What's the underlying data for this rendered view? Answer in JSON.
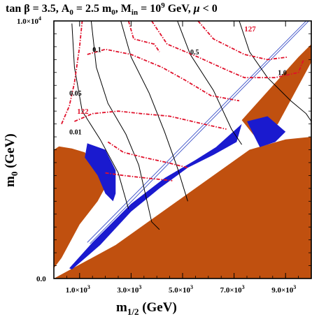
{
  "chart_data": {
    "type": "contour",
    "title": "tan β = 3.5, A0 = 2.5 m0, Min = 10^9 GeV, μ < 0",
    "title_parts": {
      "tan": "tan ",
      "beta": "β",
      "eq1": " = 3.5, A",
      "sub0": "0",
      "eq2": " = 2.5 m",
      "sub0b": "0",
      "eq3": ", M",
      "subin": "in",
      "eq4": " = 10",
      "sup9": "9",
      "eq5": " GeV, ",
      "mu": "μ",
      "eq6": " < 0"
    },
    "xlabel": "m1/2 (GeV)",
    "xlabel_parts": {
      "main": "m",
      "sub": "1/2",
      "rest": " (GeV)"
    },
    "ylabel": "m0 (GeV)",
    "ylabel_parts": {
      "main": "m",
      "sub": "0",
      "rest": " (GeV)"
    },
    "xlim": [
      0,
      10000
    ],
    "ylim": [
      0,
      10000
    ],
    "x_ticks": [
      {
        "value": 1000,
        "label": "1.0×10",
        "exp": "3"
      },
      {
        "value": 3000,
        "label": "3.0×10",
        "exp": "3"
      },
      {
        "value": 5000,
        "label": "5.0×10",
        "exp": "3"
      },
      {
        "value": 7000,
        "label": "7.0×10",
        "exp": "3"
      },
      {
        "value": 9000,
        "label": "9.0×10",
        "exp": "3"
      }
    ],
    "y_ticks": [
      {
        "value": 0,
        "label": "0.0",
        "exp": ""
      },
      {
        "value": 10000,
        "label": "1.0×10",
        "exp": "4"
      }
    ],
    "colors": {
      "excluded": "#c0500f",
      "dark_matter": "#1a1acf",
      "higgs_contour": "#e0102a",
      "black_contour": "#000000",
      "blue_line": "#3a4fc8"
    },
    "regions": {
      "excluded_lower": [
        [
          8800,
          0
        ],
        [
          10000,
          0
        ],
        [
          10000,
          5500
        ],
        [
          9000,
          5400
        ],
        [
          7600,
          5000
        ],
        [
          2400,
          1300
        ],
        [
          0,
          0
        ]
      ],
      "excluded_left": [
        [
          0,
          5000
        ],
        [
          200,
          5130
        ],
        [
          700,
          5050
        ],
        [
          1200,
          4900
        ],
        [
          1800,
          4050
        ],
        [
          2000,
          3550
        ],
        [
          1700,
          3000
        ],
        [
          1000,
          2100
        ],
        [
          300,
          800
        ],
        [
          0,
          400
        ]
      ],
      "excluded_upper_band": [
        [
          7300,
          6150
        ],
        [
          9500,
          8600
        ],
        [
          10000,
          9100
        ],
        [
          10000,
          8400
        ],
        [
          8700,
          6000
        ],
        [
          7900,
          5400
        ]
      ],
      "dm_band_main": [
        [
          600,
          400
        ],
        [
          1500,
          1400
        ],
        [
          3000,
          2900
        ],
        [
          4300,
          3900
        ],
        [
          5500,
          4600
        ],
        [
          6300,
          5100
        ],
        [
          7300,
          6000
        ],
        [
          7100,
          5300
        ],
        [
          6200,
          4800
        ],
        [
          5200,
          4300
        ],
        [
          4100,
          3500
        ],
        [
          3000,
          2600
        ],
        [
          1800,
          1300
        ],
        [
          700,
          350
        ]
      ],
      "dm_band_left": [
        [
          1300,
          5250
        ],
        [
          2000,
          5000
        ],
        [
          2400,
          4200
        ],
        [
          2400,
          3300
        ],
        [
          2300,
          3000
        ],
        [
          2000,
          3300
        ],
        [
          1700,
          4000
        ],
        [
          1200,
          4700
        ]
      ],
      "dm_band_right": [
        [
          7500,
          6100
        ],
        [
          8300,
          6300
        ],
        [
          9000,
          5700
        ],
        [
          8600,
          5300
        ],
        [
          8000,
          5100
        ]
      ]
    },
    "blue_lines": [
      {
        "points": [
          [
            1300,
            1400
          ],
          [
            10000,
            10200
          ]
        ]
      },
      {
        "points": [
          [
            1400,
            1350
          ],
          [
            10000,
            10100
          ]
        ]
      }
    ],
    "black_contours": [
      {
        "label": "0.01",
        "points": [
          [
            700,
            9900
          ],
          [
            800,
            8200
          ],
          [
            1100,
            6500
          ],
          [
            1800,
            5400
          ],
          [
            2500,
            4100
          ],
          [
            2900,
            2700
          ]
        ]
      },
      {
        "label": "0.05",
        "points": [
          [
            1450,
            10000
          ],
          [
            1650,
            8200
          ],
          [
            2100,
            6800
          ],
          [
            2800,
            5600
          ],
          [
            3300,
            4400
          ],
          [
            3800,
            2200
          ],
          [
            4100,
            1900
          ]
        ]
      },
      {
        "label": "0.1",
        "points": [
          [
            2600,
            10000
          ],
          [
            3000,
            8600
          ],
          [
            3700,
            7200
          ],
          [
            4300,
            5700
          ],
          [
            4800,
            4300
          ],
          [
            5200,
            3000
          ]
        ]
      },
      {
        "label": "0.5",
        "points": [
          [
            4800,
            10000
          ],
          [
            5300,
            8700
          ],
          [
            6200,
            7300
          ],
          [
            6900,
            5800
          ],
          [
            7300,
            5200
          ]
        ]
      },
      {
        "label": "1.0",
        "points": [
          [
            7200,
            10000
          ],
          [
            7600,
            8800
          ],
          [
            8300,
            7800
          ],
          [
            9200,
            6900
          ],
          [
            9800,
            6400
          ],
          [
            10000,
            6100
          ]
        ]
      }
    ],
    "higgs_contours": [
      {
        "label": "127",
        "points": [
          [
            3800,
            10000
          ],
          [
            4400,
            9100
          ],
          [
            5600,
            8600
          ],
          [
            6700,
            8100
          ],
          [
            7400,
            7800
          ],
          [
            8600,
            7800
          ],
          [
            9500,
            8000
          ],
          [
            9700,
            8500
          ]
        ]
      },
      {
        "label": "",
        "points": [
          [
            5600,
            10000
          ],
          [
            6200,
            9300
          ],
          [
            7400,
            8700
          ],
          [
            8300,
            8500
          ],
          [
            9100,
            8600
          ]
        ]
      },
      {
        "label": "122",
        "points": [
          [
            800,
            6100
          ],
          [
            1500,
            6400
          ],
          [
            2500,
            6500
          ],
          [
            3400,
            6400
          ],
          [
            4500,
            6300
          ],
          [
            5800,
            6000
          ],
          [
            6700,
            5800
          ]
        ]
      },
      {
        "label": "",
        "points": [
          [
            1300,
            8700
          ],
          [
            2000,
            8900
          ],
          [
            3000,
            8700
          ],
          [
            4200,
            8200
          ],
          [
            5100,
            7700
          ],
          [
            6100,
            7100
          ],
          [
            7200,
            6900
          ]
        ]
      },
      {
        "label": "",
        "points": [
          [
            2100,
            5300
          ],
          [
            2700,
            4900
          ],
          [
            3500,
            4700
          ],
          [
            4400,
            4500
          ],
          [
            5200,
            4300
          ]
        ]
      },
      {
        "label": "",
        "points": [
          [
            2000,
            4100
          ],
          [
            2700,
            4000
          ],
          [
            3600,
            3900
          ],
          [
            4600,
            3800
          ]
        ]
      },
      {
        "label": "",
        "points": [
          [
            300,
            6000
          ],
          [
            600,
            6700
          ],
          [
            800,
            7600
          ],
          [
            1000,
            9000
          ],
          [
            1100,
            10000
          ]
        ]
      },
      {
        "label": "",
        "points": [
          [
            2900,
            10000
          ],
          [
            3100,
            9300
          ],
          [
            3900,
            9100
          ],
          [
            4100,
            8800
          ]
        ]
      }
    ],
    "contour_labels": [
      {
        "text": "0.1",
        "x": 1500,
        "y": 8800,
        "color": "black"
      },
      {
        "text": "0.5",
        "x": 5300,
        "y": 8700,
        "color": "black"
      },
      {
        "text": "1.0",
        "x": 8700,
        "y": 7900,
        "color": "black"
      },
      {
        "text": "0.05",
        "x": 600,
        "y": 7100,
        "color": "black"
      },
      {
        "text": "0.01",
        "x": 600,
        "y": 5600,
        "color": "black"
      },
      {
        "text": "127",
        "x": 7400,
        "y": 9600,
        "color": "red"
      },
      {
        "text": "122",
        "x": 900,
        "y": 6400,
        "color": "red"
      }
    ]
  }
}
